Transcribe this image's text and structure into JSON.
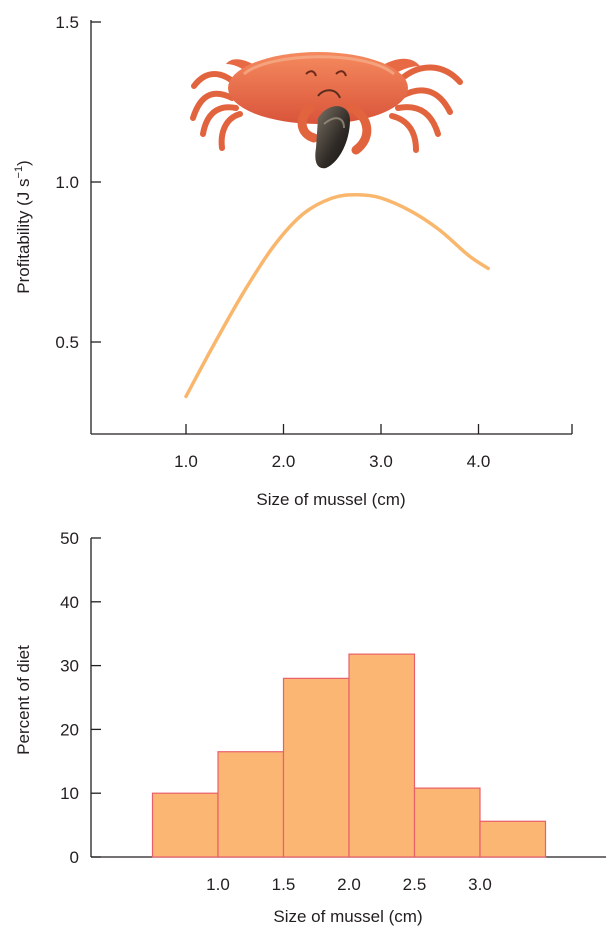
{
  "chart_data": [
    {
      "type": "line",
      "xlabel": "Size of mussel (cm)",
      "ylabel": "Profitability (J s",
      "ylabel_unit_superscript": "−1",
      "ylabel_suffix": ")",
      "x_ticks": [
        "1.0",
        "2.0",
        "3.0",
        "4.0"
      ],
      "y_ticks": [
        "0.5",
        "1.0",
        "1.5"
      ],
      "xlim": [
        0.0,
        5.0
      ],
      "ylim": [
        0.22,
        1.5
      ],
      "grid": false,
      "line_color": "#f9b76d",
      "series": [
        {
          "x": [
            1.0,
            1.3,
            1.6,
            1.9,
            2.2,
            2.5,
            2.75,
            3.0,
            3.3,
            3.6,
            3.9,
            4.1
          ],
          "y": [
            0.33,
            0.5,
            0.66,
            0.8,
            0.9,
            0.95,
            0.96,
            0.95,
            0.91,
            0.85,
            0.77,
            0.73
          ]
        }
      ],
      "illustration": "crab-holding-mussel-icon"
    },
    {
      "type": "bar",
      "xlabel": "Size of mussel (cm)",
      "ylabel": "Percent of diet",
      "x_ticks": [
        "1.0",
        "1.5",
        "2.0",
        "2.5",
        "3.0"
      ],
      "y_ticks": [
        "0",
        "10",
        "20",
        "30",
        "40",
        "50"
      ],
      "ylim": [
        0,
        50
      ],
      "grid": false,
      "bar_color": "#fbb673",
      "bar_edge_color": "#e8606a",
      "bins": [
        {
          "from": 0.5,
          "to": 1.0,
          "value": 10
        },
        {
          "from": 1.0,
          "to": 1.5,
          "value": 16.5
        },
        {
          "from": 1.5,
          "to": 2.0,
          "value": 28
        },
        {
          "from": 2.0,
          "to": 2.5,
          "value": 31.8
        },
        {
          "from": 2.5,
          "to": 3.0,
          "value": 10.8
        },
        {
          "from": 3.0,
          "to": 3.5,
          "value": 5.6
        }
      ]
    }
  ]
}
